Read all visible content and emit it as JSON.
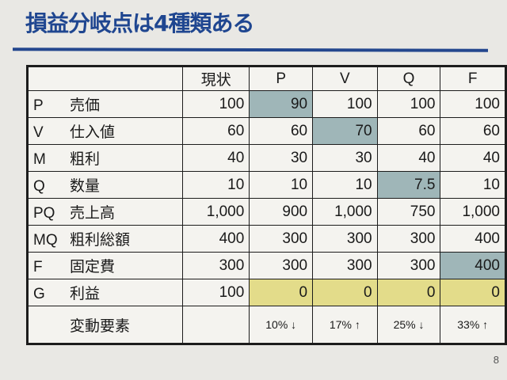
{
  "title": "損益分岐点は4種類ある",
  "page_number": "8",
  "colors": {
    "title": "#1f4690",
    "highlight_changed": "#9fb6b8",
    "highlight_profit": "#e3dc8a"
  },
  "table": {
    "headers": [
      "",
      "現状",
      "P",
      "V",
      "Q",
      "F"
    ],
    "rows": [
      {
        "key": "P",
        "label": "売価",
        "values": [
          "100",
          "90",
          "100",
          "100",
          "100"
        ],
        "hl": 1
      },
      {
        "key": "V",
        "label": "仕入値",
        "values": [
          "60",
          "60",
          "70",
          "60",
          "60"
        ],
        "hl": 2
      },
      {
        "key": "M",
        "label": "粗利",
        "values": [
          "40",
          "30",
          "30",
          "40",
          "40"
        ],
        "hl": -1
      },
      {
        "key": "Q",
        "label": "数量",
        "values": [
          "10",
          "10",
          "10",
          "7.5",
          "10"
        ],
        "hl": 3
      },
      {
        "key": "PQ",
        "label": "売上高",
        "values": [
          "1,000",
          "900",
          "1,000",
          "750",
          "1,000"
        ],
        "hl": -1
      },
      {
        "key": "MQ",
        "label": "粗利総額",
        "values": [
          "400",
          "300",
          "300",
          "300",
          "400"
        ],
        "hl": -1
      },
      {
        "key": "F",
        "label": "固定費",
        "values": [
          "300",
          "300",
          "300",
          "300",
          "400"
        ],
        "hl": 4
      },
      {
        "key": "G",
        "label": "利益",
        "values": [
          "100",
          "0",
          "0",
          "0",
          "0"
        ],
        "hl": "profit"
      }
    ],
    "footer": {
      "label": "変動要素",
      "values": [
        "",
        "10% ↓",
        "17% ↑",
        "25% ↓",
        "33% ↑"
      ]
    }
  }
}
